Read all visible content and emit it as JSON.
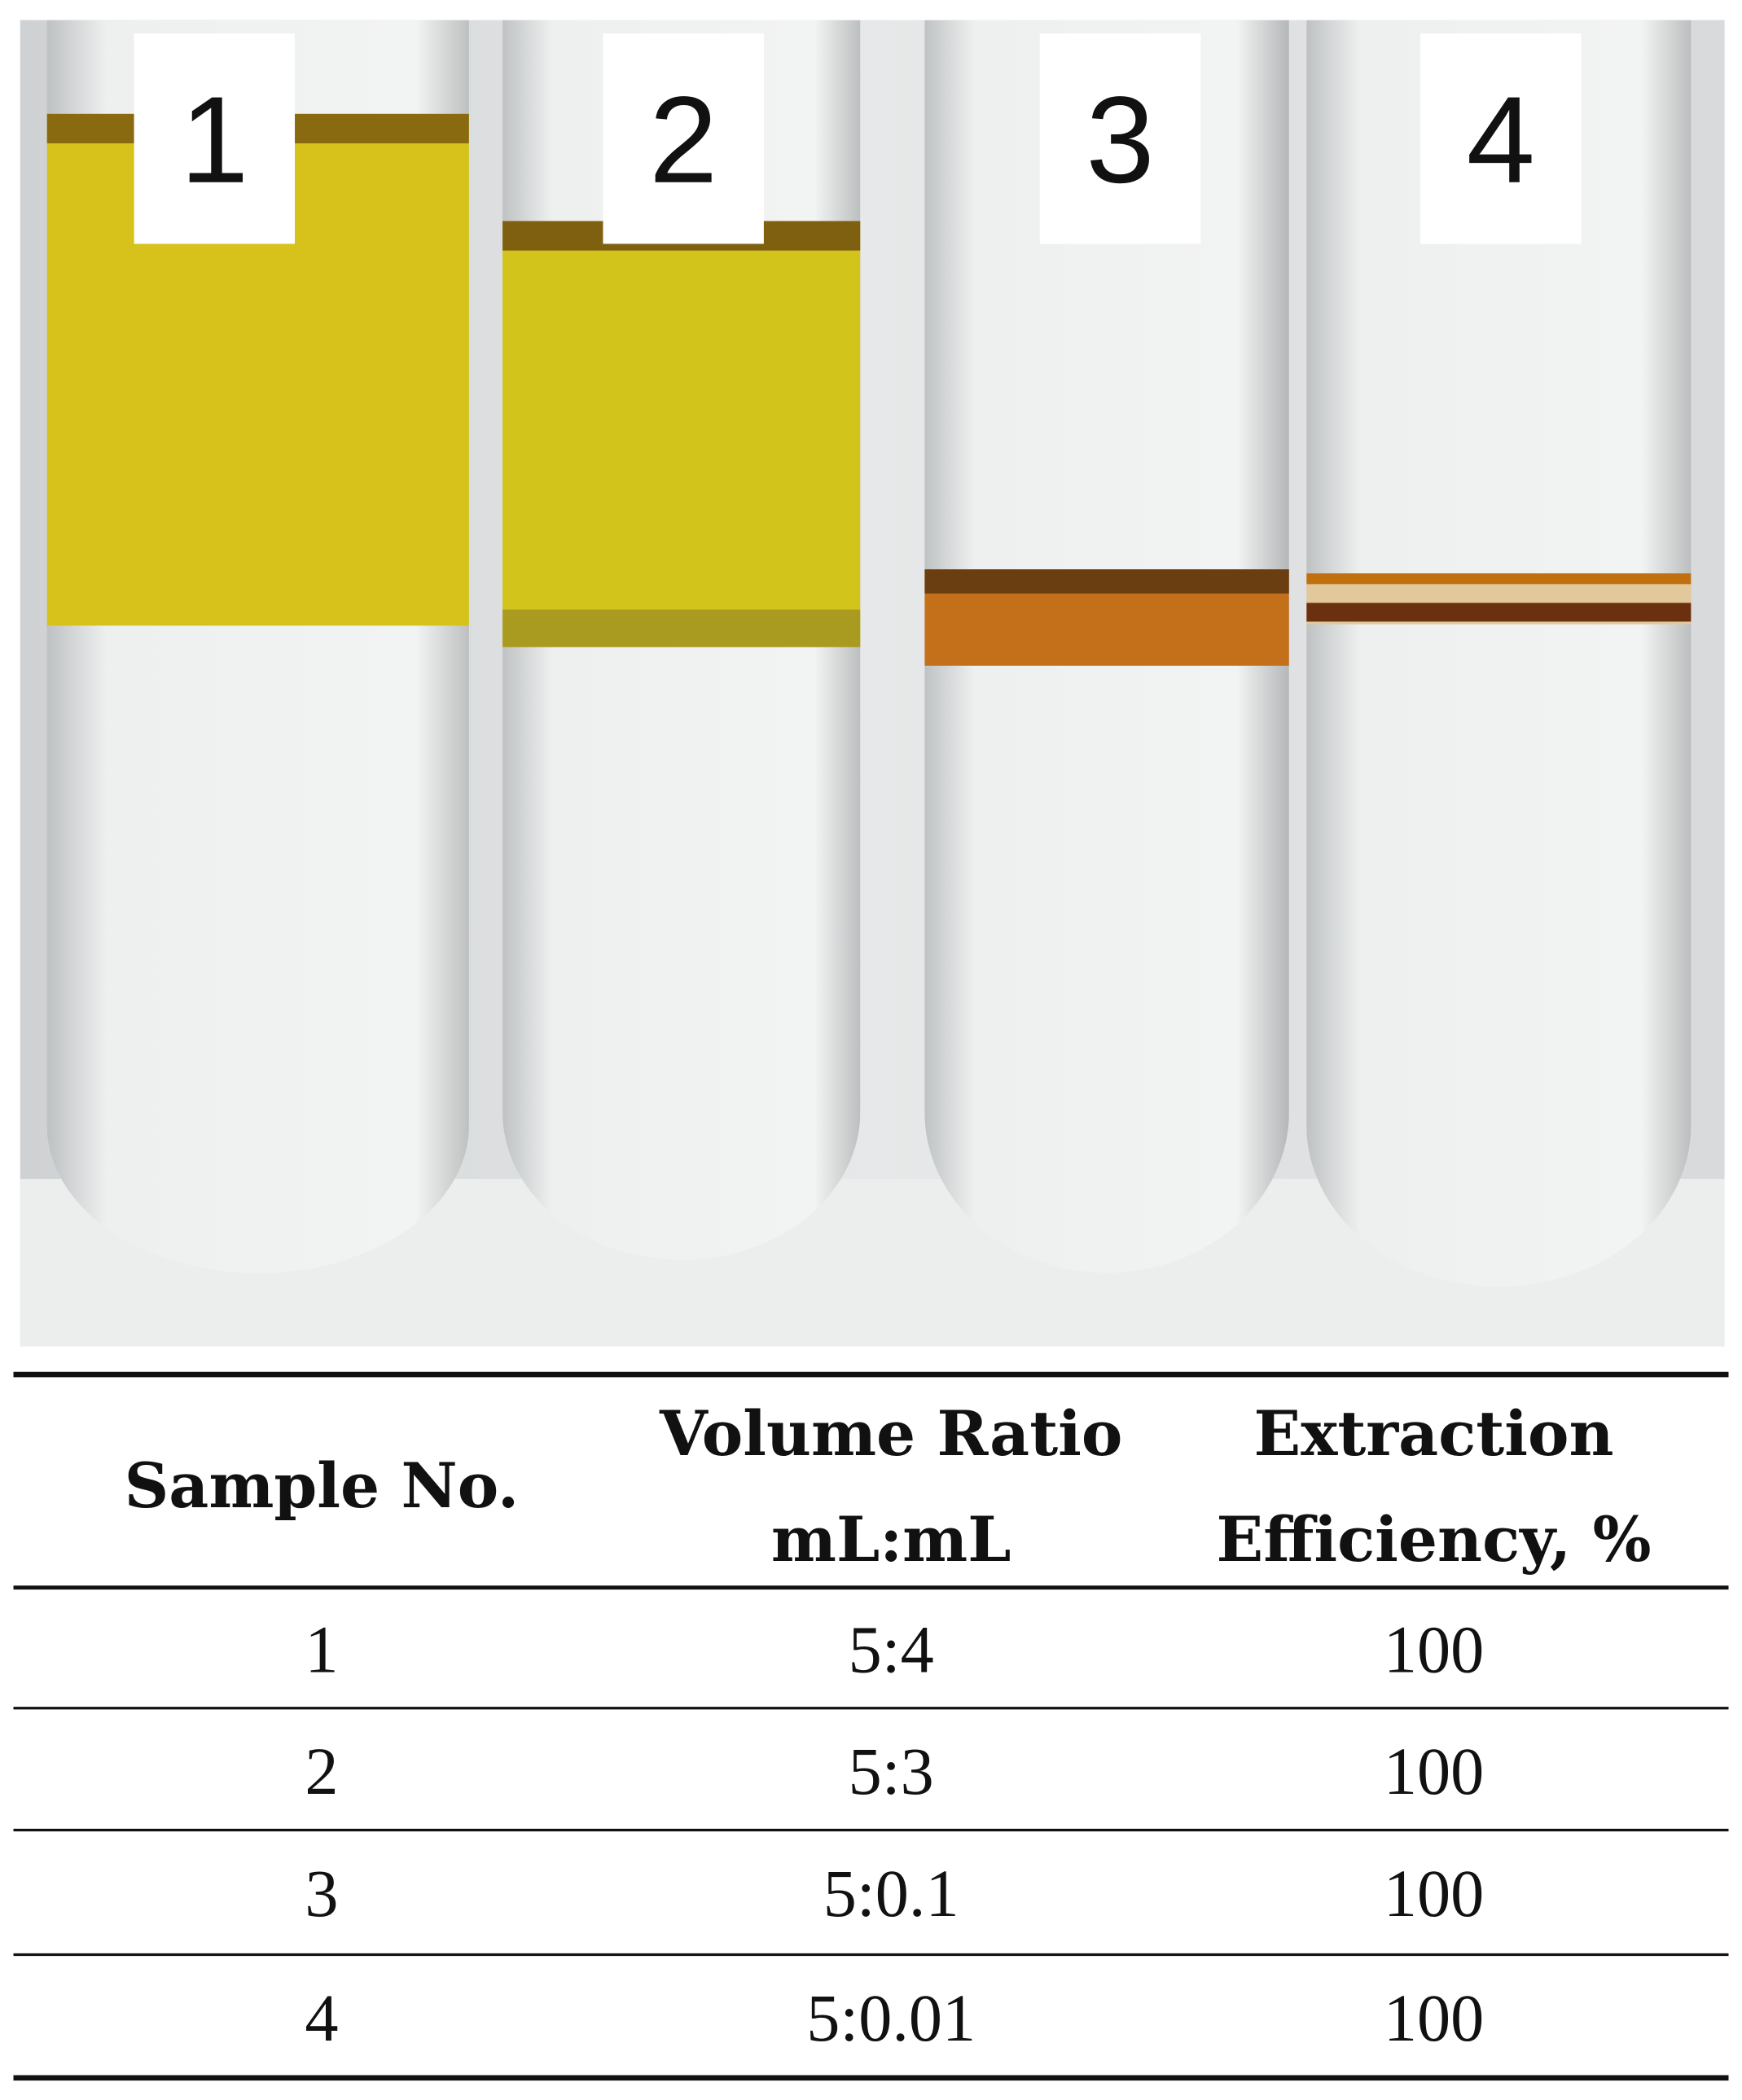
{
  "photo": {
    "labels": [
      "1",
      "2",
      "3",
      "4"
    ]
  },
  "table": {
    "header": [
      "Sample No.",
      [
        "Volume Ratio",
        "mL:mL"
      ],
      [
        "Extraction",
        "Efficiency, %"
      ]
    ],
    "rows": [
      [
        "1",
        "5:4",
        "100"
      ],
      [
        "2",
        "5:3",
        "100"
      ],
      [
        "3",
        "5:0.1",
        "100"
      ],
      [
        "4",
        "5:0.01",
        "100"
      ]
    ]
  }
}
